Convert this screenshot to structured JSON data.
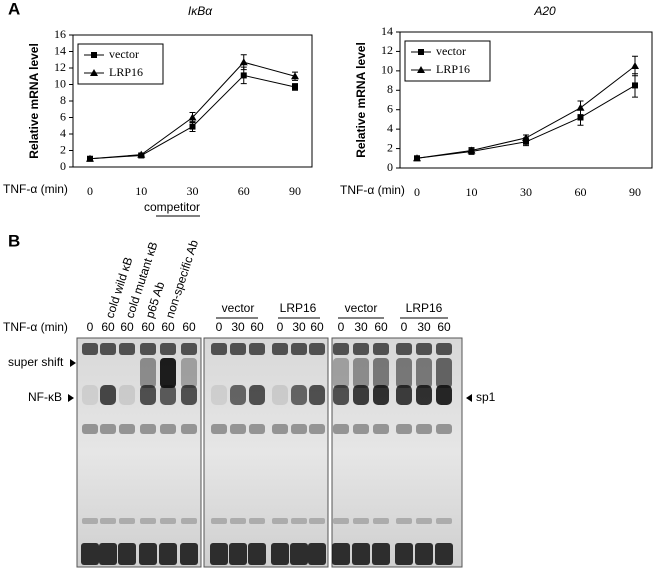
{
  "chart_data": [
    {
      "type": "line",
      "title": "IκBα",
      "ylabel": "Relative mRNA level",
      "xlabel": "TNF-α (min)",
      "categories": [
        "0",
        "10",
        "30",
        "60",
        "90"
      ],
      "ylim": [
        0,
        16
      ],
      "yticks": [
        0,
        2,
        4,
        6,
        8,
        10,
        12,
        14,
        16
      ],
      "legend": "upper left",
      "series": [
        {
          "name": "vector",
          "color": "#000000",
          "marker": "square",
          "values": [
            1,
            1.4,
            4.9,
            11.1,
            9.7
          ],
          "errors": [
            0.1,
            0.1,
            0.6,
            1.0,
            0.4
          ]
        },
        {
          "name": "LRP16",
          "color": "#000000",
          "marker": "triangle",
          "values": [
            1,
            1.5,
            6.0,
            12.7,
            11.0
          ],
          "errors": [
            0.1,
            0.1,
            0.6,
            0.9,
            0.5
          ]
        }
      ]
    },
    {
      "type": "line",
      "title": "A20",
      "ylabel": "Relative mRNA level",
      "xlabel": "TNF-α (min)",
      "categories": [
        "0",
        "10",
        "30",
        "60",
        "90"
      ],
      "ylim": [
        0,
        14
      ],
      "yticks": [
        0,
        2,
        4,
        6,
        8,
        10,
        12,
        14
      ],
      "legend": "upper left",
      "series": [
        {
          "name": "vector",
          "color": "#000000",
          "marker": "square",
          "values": [
            1,
            1.7,
            2.7,
            5.2,
            8.5
          ],
          "errors": [
            0.1,
            0.3,
            0.4,
            0.8,
            1.2
          ]
        },
        {
          "name": "LRP16",
          "color": "#000000",
          "marker": "triangle",
          "values": [
            1,
            1.8,
            3.1,
            6.2,
            10.5
          ],
          "errors": [
            0.1,
            0.3,
            0.3,
            0.7,
            1.0
          ]
        }
      ]
    }
  ],
  "panel_labels": [
    "A",
    "B"
  ],
  "gel": {
    "competitor": "competitor",
    "lane_labels": [
      "cold wild κB",
      "cold mutant κB",
      "p65 Ab",
      "non-specific Ab"
    ],
    "tnf_label": "TNF-α (min)",
    "groups": [
      "vector",
      "LRP16",
      "vector",
      "LRP16"
    ],
    "lanes": [
      [
        "0",
        "60",
        "60",
        "60",
        "60",
        "60"
      ],
      [
        "0",
        "30",
        "60",
        "0",
        "30",
        "60"
      ],
      [
        "0",
        "30",
        "60",
        "0",
        "30",
        "60"
      ]
    ],
    "super_shift": "super shift",
    "nfkb": "NF-κB",
    "sp1": "sp1"
  }
}
